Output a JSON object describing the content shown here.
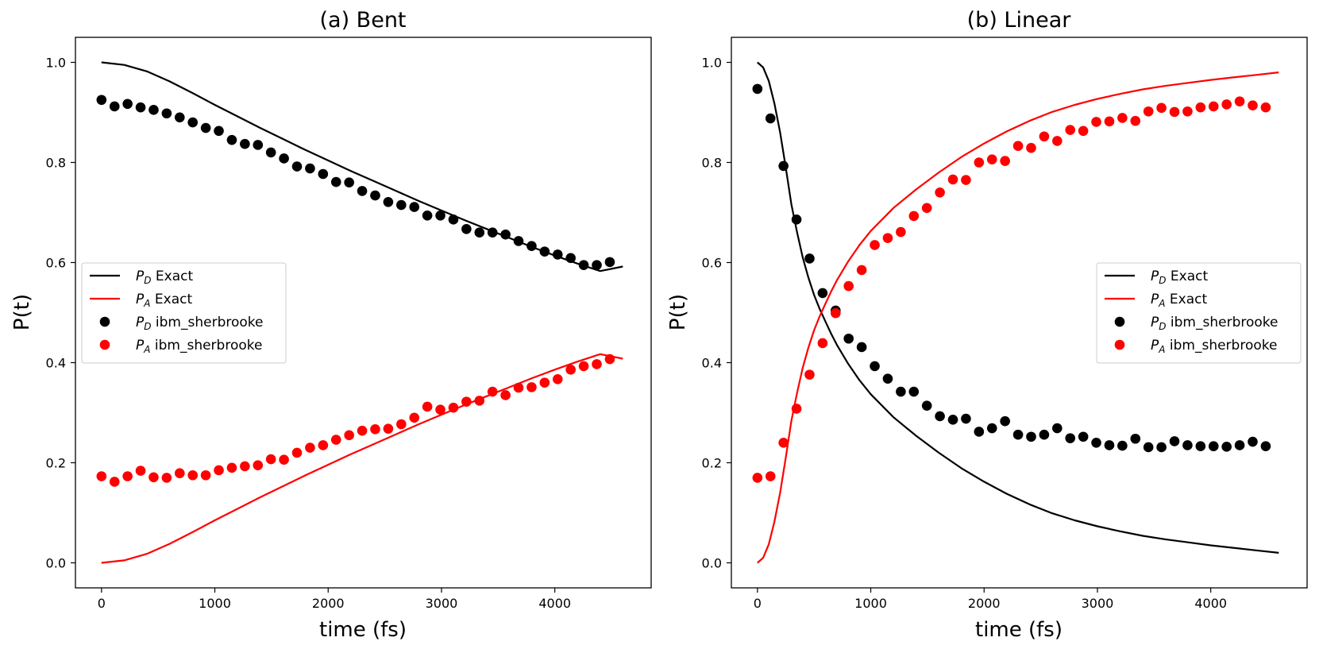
{
  "chart_data": [
    {
      "type": "line",
      "title": "(a) Bent",
      "xlabel": "time (fs)",
      "ylabel": "P(t)",
      "xlim": [
        -230,
        4850
      ],
      "ylim": [
        -0.05,
        1.05
      ],
      "xticks": [
        0,
        1000,
        2000,
        3000,
        4000
      ],
      "yticks": [
        0.0,
        0.2,
        0.4,
        0.6,
        0.8,
        1.0
      ],
      "xtick_labels": [
        "0",
        "1000",
        "2000",
        "3000",
        "4000"
      ],
      "ytick_labels": [
        "0.0",
        "0.2",
        "0.4",
        "0.6",
        "0.8",
        "1.0"
      ],
      "legend_position": "center-left",
      "series": [
        {
          "name": "PD Exact",
          "sub": "D",
          "label": "Exact",
          "style": "line",
          "color": "#000000",
          "x": [
            0,
            200,
            400,
            600,
            800,
            1000,
            1200,
            1400,
            1600,
            1800,
            2000,
            2200,
            2400,
            2600,
            2800,
            3000,
            3200,
            3400,
            3600,
            3800,
            4000,
            4200,
            4400,
            4600
          ],
          "y": [
            1.0,
            0.995,
            0.982,
            0.962,
            0.939,
            0.915,
            0.892,
            0.869,
            0.847,
            0.825,
            0.804,
            0.783,
            0.763,
            0.743,
            0.723,
            0.704,
            0.685,
            0.667,
            0.649,
            0.631,
            0.614,
            0.598,
            0.583,
            0.592
          ]
        },
        {
          "name": "PA Exact",
          "sub": "A",
          "label": "Exact",
          "style": "line",
          "color": "#ff0000",
          "x": [
            0,
            200,
            400,
            600,
            800,
            1000,
            1200,
            1400,
            1600,
            1800,
            2000,
            2200,
            2400,
            2600,
            2800,
            3000,
            3200,
            3400,
            3600,
            3800,
            4000,
            4200,
            4400,
            4600
          ],
          "y": [
            0.0,
            0.005,
            0.018,
            0.038,
            0.061,
            0.085,
            0.108,
            0.131,
            0.153,
            0.175,
            0.196,
            0.217,
            0.237,
            0.257,
            0.277,
            0.296,
            0.315,
            0.333,
            0.351,
            0.369,
            0.386,
            0.402,
            0.417,
            0.408
          ]
        },
        {
          "name": "PD ibm_sherbrooke",
          "sub": "D",
          "label": "ibm_sherbrooke",
          "style": "marker",
          "color": "#000000",
          "x": [
            0,
            115,
            230,
            345,
            460,
            575,
            690,
            805,
            920,
            1035,
            1150,
            1265,
            1380,
            1495,
            1610,
            1725,
            1840,
            1955,
            2070,
            2185,
            2300,
            2415,
            2530,
            2645,
            2760,
            2875,
            2990,
            3105,
            3220,
            3335,
            3450,
            3565,
            3680,
            3795,
            3910,
            4025,
            4140,
            4255,
            4370,
            4485
          ],
          "y": [
            0.925,
            0.912,
            0.917,
            0.91,
            0.905,
            0.898,
            0.89,
            0.88,
            0.869,
            0.863,
            0.845,
            0.837,
            0.835,
            0.82,
            0.808,
            0.792,
            0.788,
            0.777,
            0.761,
            0.76,
            0.743,
            0.734,
            0.721,
            0.715,
            0.711,
            0.694,
            0.694,
            0.686,
            0.667,
            0.66,
            0.66,
            0.656,
            0.643,
            0.633,
            0.622,
            0.616,
            0.609,
            0.595,
            0.595,
            0.601
          ]
        },
        {
          "name": "PA ibm_sherbrooke",
          "sub": "A",
          "label": "ibm_sherbrooke",
          "style": "marker",
          "color": "#ff0000",
          "x": [
            0,
            115,
            230,
            345,
            460,
            575,
            690,
            805,
            920,
            1035,
            1150,
            1265,
            1380,
            1495,
            1610,
            1725,
            1840,
            1955,
            2070,
            2185,
            2300,
            2415,
            2530,
            2645,
            2760,
            2875,
            2990,
            3105,
            3220,
            3335,
            3450,
            3565,
            3680,
            3795,
            3910,
            4025,
            4140,
            4255,
            4370,
            4485
          ],
          "y": [
            0.173,
            0.162,
            0.173,
            0.184,
            0.171,
            0.17,
            0.179,
            0.175,
            0.175,
            0.185,
            0.19,
            0.193,
            0.195,
            0.207,
            0.206,
            0.22,
            0.23,
            0.235,
            0.246,
            0.255,
            0.264,
            0.267,
            0.268,
            0.277,
            0.29,
            0.312,
            0.306,
            0.31,
            0.322,
            0.324,
            0.342,
            0.335,
            0.35,
            0.351,
            0.36,
            0.367,
            0.386,
            0.393,
            0.397,
            0.407
          ]
        }
      ]
    },
    {
      "type": "line",
      "title": "(b) Linear",
      "xlabel": "time (fs)",
      "ylabel": "P(t)",
      "xlim": [
        -230,
        4850
      ],
      "ylim": [
        -0.05,
        1.05
      ],
      "xticks": [
        0,
        1000,
        2000,
        3000,
        4000
      ],
      "yticks": [
        0.0,
        0.2,
        0.4,
        0.6,
        0.8,
        1.0
      ],
      "xtick_labels": [
        "0",
        "1000",
        "2000",
        "3000",
        "4000"
      ],
      "ytick_labels": [
        "0.0",
        "0.2",
        "0.4",
        "0.6",
        "0.8",
        "1.0"
      ],
      "legend_position": "center-right",
      "series": [
        {
          "name": "PD Exact",
          "sub": "D",
          "label": "Exact",
          "style": "line",
          "color": "#000000",
          "x": [
            0,
            50,
            100,
            150,
            200,
            250,
            300,
            350,
            400,
            450,
            500,
            550,
            600,
            650,
            700,
            800,
            900,
            1000,
            1200,
            1400,
            1600,
            1800,
            2000,
            2200,
            2400,
            2600,
            2800,
            3000,
            3200,
            3400,
            3600,
            3800,
            4000,
            4200,
            4400,
            4600
          ],
          "y": [
            1.0,
            0.99,
            0.963,
            0.918,
            0.86,
            0.79,
            0.716,
            0.66,
            0.61,
            0.57,
            0.535,
            0.507,
            0.482,
            0.458,
            0.436,
            0.398,
            0.365,
            0.337,
            0.291,
            0.254,
            0.22,
            0.189,
            0.162,
            0.138,
            0.117,
            0.099,
            0.085,
            0.073,
            0.063,
            0.054,
            0.047,
            0.041,
            0.035,
            0.03,
            0.025,
            0.02
          ]
        },
        {
          "name": "PA Exact",
          "sub": "A",
          "label": "Exact",
          "style": "line",
          "color": "#ff0000",
          "x": [
            0,
            50,
            100,
            150,
            200,
            250,
            300,
            350,
            400,
            450,
            500,
            550,
            600,
            650,
            700,
            800,
            900,
            1000,
            1200,
            1400,
            1600,
            1800,
            2000,
            2200,
            2400,
            2600,
            2800,
            3000,
            3200,
            3400,
            3600,
            3800,
            4000,
            4200,
            4400,
            4600
          ],
          "y": [
            0.0,
            0.01,
            0.037,
            0.082,
            0.14,
            0.21,
            0.284,
            0.34,
            0.39,
            0.43,
            0.465,
            0.493,
            0.518,
            0.542,
            0.564,
            0.602,
            0.635,
            0.663,
            0.709,
            0.746,
            0.78,
            0.811,
            0.838,
            0.862,
            0.883,
            0.901,
            0.915,
            0.927,
            0.937,
            0.946,
            0.953,
            0.959,
            0.965,
            0.97,
            0.975,
            0.98
          ]
        },
        {
          "name": "PD ibm_sherbrooke",
          "sub": "D",
          "label": "ibm_sherbrooke",
          "style": "marker",
          "color": "#000000",
          "x": [
            0,
            115,
            230,
            345,
            460,
            575,
            690,
            805,
            920,
            1035,
            1150,
            1265,
            1380,
            1495,
            1610,
            1725,
            1840,
            1955,
            2070,
            2185,
            2300,
            2415,
            2530,
            2645,
            2760,
            2875,
            2990,
            3105,
            3220,
            3335,
            3450,
            3565,
            3680,
            3795,
            3910,
            4025,
            4140,
            4255,
            4370,
            4485
          ],
          "y": [
            0.947,
            0.888,
            0.793,
            0.686,
            0.608,
            0.539,
            0.504,
            0.448,
            0.431,
            0.393,
            0.368,
            0.342,
            0.342,
            0.314,
            0.293,
            0.286,
            0.288,
            0.262,
            0.269,
            0.283,
            0.256,
            0.252,
            0.256,
            0.269,
            0.249,
            0.252,
            0.24,
            0.235,
            0.234,
            0.248,
            0.231,
            0.231,
            0.243,
            0.235,
            0.233,
            0.233,
            0.232,
            0.235,
            0.242,
            0.233
          ]
        },
        {
          "name": "PA ibm_sherbrooke",
          "sub": "A",
          "label": "ibm_sherbrooke",
          "style": "marker",
          "color": "#ff0000",
          "x": [
            0,
            115,
            230,
            345,
            460,
            575,
            690,
            805,
            920,
            1035,
            1150,
            1265,
            1380,
            1495,
            1610,
            1725,
            1840,
            1955,
            2070,
            2185,
            2300,
            2415,
            2530,
            2645,
            2760,
            2875,
            2990,
            3105,
            3220,
            3335,
            3450,
            3565,
            3680,
            3795,
            3910,
            4025,
            4140,
            4255,
            4370,
            4485
          ],
          "y": [
            0.17,
            0.173,
            0.24,
            0.308,
            0.376,
            0.439,
            0.499,
            0.553,
            0.585,
            0.635,
            0.649,
            0.661,
            0.693,
            0.709,
            0.74,
            0.766,
            0.765,
            0.8,
            0.806,
            0.803,
            0.833,
            0.829,
            0.852,
            0.843,
            0.865,
            0.863,
            0.881,
            0.882,
            0.889,
            0.883,
            0.902,
            0.909,
            0.901,
            0.902,
            0.91,
            0.912,
            0.916,
            0.922,
            0.914,
            0.91
          ]
        }
      ]
    }
  ]
}
